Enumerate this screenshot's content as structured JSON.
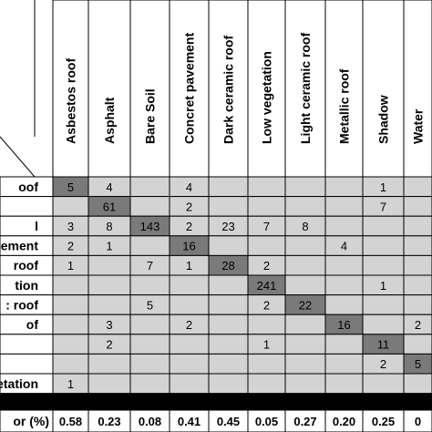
{
  "columns": [
    "Asbestos roof",
    "Asphalt",
    "Bare Soil",
    "Concret pavement",
    "Dark ceramic roof",
    "Low vegetation",
    "Light ceramic roof",
    "Metallic roof",
    "Shadow",
    "Water"
  ],
  "rows": [
    {
      "label": "oof",
      "cells": [
        "5",
        "4",
        "",
        "4",
        "",
        "",
        "",
        "",
        "1",
        ""
      ]
    },
    {
      "label": "",
      "cells": [
        "",
        "61",
        "",
        "2",
        "",
        "",
        "",
        "",
        "7",
        ""
      ]
    },
    {
      "label": "l",
      "cells": [
        "3",
        "8",
        "143",
        "2",
        "23",
        "7",
        "8",
        "",
        "",
        ""
      ]
    },
    {
      "label": "ement",
      "cells": [
        "2",
        "1",
        "",
        "16",
        "",
        "",
        "",
        "4",
        "",
        ""
      ]
    },
    {
      "label": "roof",
      "cells": [
        "1",
        "",
        "7",
        "1",
        "28",
        "2",
        "",
        "",
        "",
        ""
      ]
    },
    {
      "label": "tion",
      "cells": [
        "",
        "",
        "",
        "",
        "",
        "241",
        "",
        "",
        "1",
        ""
      ]
    },
    {
      "label": ": roof",
      "cells": [
        "",
        "",
        "5",
        "",
        "",
        "2",
        "22",
        "",
        "",
        ""
      ]
    },
    {
      "label": "of",
      "cells": [
        "",
        "3",
        "",
        "2",
        "",
        "",
        "",
        "16",
        "",
        "2"
      ]
    },
    {
      "label": "",
      "cells": [
        "",
        "2",
        "",
        "",
        "",
        "1",
        "",
        "",
        "11",
        ""
      ]
    },
    {
      "label": "",
      "cells": [
        "",
        "",
        "",
        "",
        "",
        "",
        "",
        "",
        "2",
        "5"
      ]
    },
    {
      "label": "etation",
      "cells": [
        "1",
        "",
        "",
        "",
        "",
        "",
        "",
        "",
        "",
        ""
      ]
    }
  ],
  "accuracy_row": {
    "label": "or (%)",
    "values": [
      "0.58",
      "0.23",
      "0.08",
      "0.41",
      "0.45",
      "0.05",
      "0.27",
      "0.20",
      "0.25",
      "0"
    ]
  },
  "colors": {
    "cell_bg": "#d3d3d3",
    "diagonal_bg": "#7a7a7a",
    "separator_bar": "#000000",
    "border": "#000000"
  }
}
